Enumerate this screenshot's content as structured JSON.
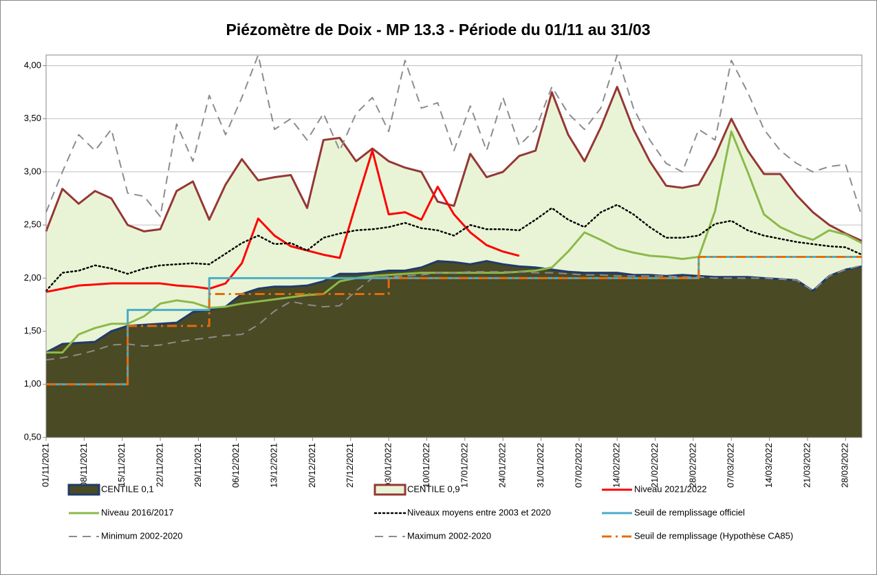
{
  "chart_data": {
    "type": "line",
    "title": "Piézomètre de Doix - MP 13.3 - Période du 01/11 au 31/03",
    "x": [
      "01/11/2021",
      "04/11/2021",
      "07/11/2021",
      "10/11/2021",
      "13/11/2021",
      "16/11/2021",
      "19/11/2021",
      "22/11/2021",
      "25/11/2021",
      "28/11/2021",
      "01/12/2021",
      "04/12/2021",
      "07/12/2021",
      "10/12/2021",
      "13/12/2021",
      "16/12/2021",
      "19/12/2021",
      "22/12/2021",
      "25/12/2021",
      "28/12/2021",
      "31/12/2021",
      "03/01/2022",
      "06/01/2022",
      "09/01/2022",
      "12/01/2022",
      "15/01/2022",
      "18/01/2022",
      "21/01/2022",
      "24/01/2022",
      "27/01/2022",
      "30/01/2022",
      "02/02/2022",
      "05/02/2022",
      "08/02/2022",
      "11/02/2022",
      "14/02/2022",
      "17/02/2022",
      "20/02/2022",
      "23/02/2022",
      "26/02/2022",
      "01/03/2022",
      "04/03/2022",
      "07/03/2022",
      "10/03/2022",
      "13/03/2022",
      "16/03/2022",
      "19/03/2022",
      "22/03/2022",
      "25/03/2022",
      "28/03/2022",
      "31/03/2022"
    ],
    "xlim": [
      "01/11/2021",
      "31/03/2022"
    ],
    "xticks": [
      "01/11/2021",
      "08/11/2021",
      "15/11/2021",
      "22/11/2021",
      "29/11/2021",
      "06/12/2021",
      "13/12/2021",
      "20/12/2021",
      "27/12/2021",
      "03/01/2022",
      "10/01/2022",
      "17/01/2022",
      "24/01/2022",
      "31/01/2022",
      "07/02/2022",
      "14/02/2022",
      "21/02/2022",
      "28/02/2022",
      "07/03/2022",
      "14/03/2022",
      "21/03/2022",
      "28/03/2022"
    ],
    "ylim": [
      0.5,
      4.1
    ],
    "yticks": [
      {
        "value": 0.5,
        "label": "0,50"
      },
      {
        "value": 1,
        "label": "1,00"
      },
      {
        "value": 1.5,
        "label": "1,50"
      },
      {
        "value": 2,
        "label": "2,00"
      },
      {
        "value": 2.5,
        "label": "2,50"
      },
      {
        "value": 3,
        "label": "3,00"
      },
      {
        "value": 3.5,
        "label": "3,50"
      },
      {
        "value": 4,
        "label": "4,00"
      }
    ],
    "grid": true,
    "series": [
      {
        "name": "CENTILE 0,1",
        "fill": true,
        "fill_color": "#4a4a24",
        "color": "#1f3b6b",
        "line_style": "solid",
        "values": [
          1.3,
          1.38,
          1.39,
          1.4,
          1.5,
          1.55,
          1.56,
          1.57,
          1.58,
          1.68,
          1.7,
          1.73,
          1.85,
          1.9,
          1.92,
          1.92,
          1.93,
          1.97,
          2.04,
          2.04,
          2.05,
          2.07,
          2.07,
          2.1,
          2.16,
          2.15,
          2.13,
          2.16,
          2.13,
          2.11,
          2.1,
          2.08,
          2.06,
          2.05,
          2.05,
          2.05,
          2.03,
          2.03,
          2.02,
          2.03,
          2.02,
          2.01,
          2.01,
          2.01,
          2.0,
          1.99,
          1.98,
          1.88,
          2.02,
          2.08,
          2.11
        ]
      },
      {
        "name": "CENTILE 0,9",
        "fill": true,
        "fill_color": "#e9f4d6",
        "color": "#953735",
        "line_style": "solid",
        "values": [
          2.44,
          2.84,
          2.7,
          2.82,
          2.75,
          2.5,
          2.44,
          2.46,
          2.82,
          2.91,
          2.55,
          2.88,
          3.12,
          2.92,
          2.95,
          2.97,
          2.66,
          3.3,
          3.32,
          3.1,
          3.22,
          3.1,
          3.04,
          3.0,
          2.72,
          2.68,
          3.17,
          2.95,
          3.0,
          3.15,
          3.2,
          3.75,
          3.35,
          3.1,
          3.42,
          3.8,
          3.4,
          3.1,
          2.87,
          2.85,
          2.88,
          3.15,
          3.5,
          3.2,
          2.98,
          2.98,
          2.78,
          2.62,
          2.5,
          2.42,
          2.35
        ]
      },
      {
        "name": "Niveau 2021/2022",
        "color": "#ff0000",
        "line_style": "solid",
        "values": [
          1.87,
          1.9,
          1.93,
          1.94,
          1.95,
          1.95,
          1.95,
          1.95,
          1.93,
          1.92,
          1.9,
          1.95,
          2.14,
          2.56,
          2.4,
          2.3,
          2.26,
          2.22,
          2.19,
          2.7,
          3.2,
          2.6,
          2.62,
          2.55,
          2.86,
          2.6,
          2.43,
          2.31,
          2.25,
          2.21,
          null,
          null,
          null,
          null,
          null,
          null,
          null,
          null,
          null,
          null,
          null,
          null,
          null,
          null,
          null,
          null,
          null,
          null,
          null,
          null,
          null
        ]
      },
      {
        "name": "Niveau 2016/2017",
        "color": "#8cb94a",
        "line_style": "solid",
        "values": [
          1.3,
          1.3,
          1.47,
          1.53,
          1.57,
          1.57,
          1.64,
          1.76,
          1.79,
          1.77,
          1.72,
          1.73,
          1.76,
          1.78,
          1.8,
          1.82,
          1.84,
          1.85,
          1.97,
          2.0,
          2.02,
          2.03,
          2.04,
          2.05,
          2.05,
          2.05,
          2.05,
          2.05,
          2.05,
          2.06,
          2.07,
          2.1,
          2.25,
          2.43,
          2.36,
          2.28,
          2.24,
          2.21,
          2.2,
          2.18,
          2.2,
          2.63,
          3.38,
          3.0,
          2.6,
          2.48,
          2.41,
          2.36,
          2.45,
          2.41,
          2.33
        ]
      },
      {
        "name": "Niveaux moyens entre 2003 et 2020",
        "color": "#000000",
        "line_style": "dotted",
        "values": [
          1.88,
          2.05,
          2.07,
          2.12,
          2.09,
          2.04,
          2.09,
          2.12,
          2.13,
          2.14,
          2.13,
          2.23,
          2.33,
          2.4,
          2.32,
          2.33,
          2.26,
          2.38,
          2.42,
          2.45,
          2.46,
          2.48,
          2.52,
          2.47,
          2.45,
          2.4,
          2.5,
          2.46,
          2.46,
          2.45,
          2.55,
          2.66,
          2.55,
          2.48,
          2.62,
          2.69,
          2.6,
          2.48,
          2.38,
          2.38,
          2.4,
          2.51,
          2.54,
          2.45,
          2.4,
          2.37,
          2.34,
          2.32,
          2.3,
          2.29,
          2.22
        ]
      },
      {
        "name": "Seuil de remplissage officiel",
        "color": "#4bacc6",
        "line_style": "solid",
        "step": true,
        "values": [
          1,
          1,
          1,
          1,
          1,
          1.7,
          1.7,
          1.7,
          1.7,
          1.7,
          2,
          2,
          2,
          2,
          2,
          2,
          2,
          2,
          2,
          2,
          2,
          2,
          2,
          2,
          2,
          2,
          2,
          2,
          2,
          2,
          2,
          2,
          2,
          2,
          2,
          2,
          2,
          2,
          2,
          2,
          2.2,
          2.2,
          2.2,
          2.2,
          2.2,
          2.2,
          2.2,
          2.2,
          2.2,
          2.2,
          2.2
        ]
      },
      {
        "name": "Minimum 2002-2020",
        "color": "#8c8c8c",
        "line_style": "dashed",
        "values": [
          1.23,
          1.25,
          1.28,
          1.32,
          1.37,
          1.38,
          1.36,
          1.37,
          1.4,
          1.42,
          1.44,
          1.46,
          1.47,
          1.56,
          1.69,
          1.78,
          1.75,
          1.73,
          1.74,
          1.88,
          2.0,
          2.01,
          2.02,
          2.03,
          2.05,
          2.05,
          2.06,
          2.06,
          2.06,
          2.06,
          2.05,
          2.05,
          2.04,
          2.03,
          2.03,
          2.02,
          2.02,
          2.02,
          2.02,
          2.01,
          2.01,
          2.0,
          2.0,
          2.0,
          2.0,
          1.99,
          1.98,
          1.88,
          2.02,
          2.08,
          2.12
        ]
      },
      {
        "name": "Maximum 2002-2020",
        "color": "#8c8c8c",
        "line_style": "dashed",
        "values": [
          2.62,
          3.0,
          3.35,
          3.2,
          3.4,
          2.8,
          2.77,
          2.58,
          3.45,
          3.1,
          3.72,
          3.35,
          3.7,
          4.1,
          3.4,
          3.5,
          3.3,
          3.55,
          3.2,
          3.55,
          3.7,
          3.38,
          4.05,
          3.6,
          3.65,
          3.2,
          3.62,
          3.2,
          3.7,
          3.25,
          3.4,
          3.8,
          3.55,
          3.4,
          3.6,
          4.1,
          3.6,
          3.3,
          3.08,
          3.0,
          3.4,
          3.3,
          4.05,
          3.75,
          3.4,
          3.2,
          3.08,
          3.0,
          3.05,
          3.07,
          2.58
        ]
      },
      {
        "name": "Seuil de remplissage (Hypothèse CA85)",
        "color": "#e46c0a",
        "line_style": "dash-dot",
        "step": true,
        "values": [
          1,
          1,
          1,
          1,
          1,
          1.55,
          1.55,
          1.55,
          1.55,
          1.55,
          1.85,
          1.85,
          1.85,
          1.85,
          1.85,
          1.85,
          1.85,
          1.85,
          1.85,
          1.85,
          1.85,
          2,
          2,
          2,
          2,
          2,
          2,
          2,
          2,
          2,
          2,
          2,
          2,
          2,
          2,
          2,
          2,
          2,
          2,
          2,
          2.2,
          2.2,
          2.2,
          2.2,
          2.2,
          2.2,
          2.2,
          2.2,
          2.2,
          2.2,
          2.2
        ]
      }
    ]
  }
}
